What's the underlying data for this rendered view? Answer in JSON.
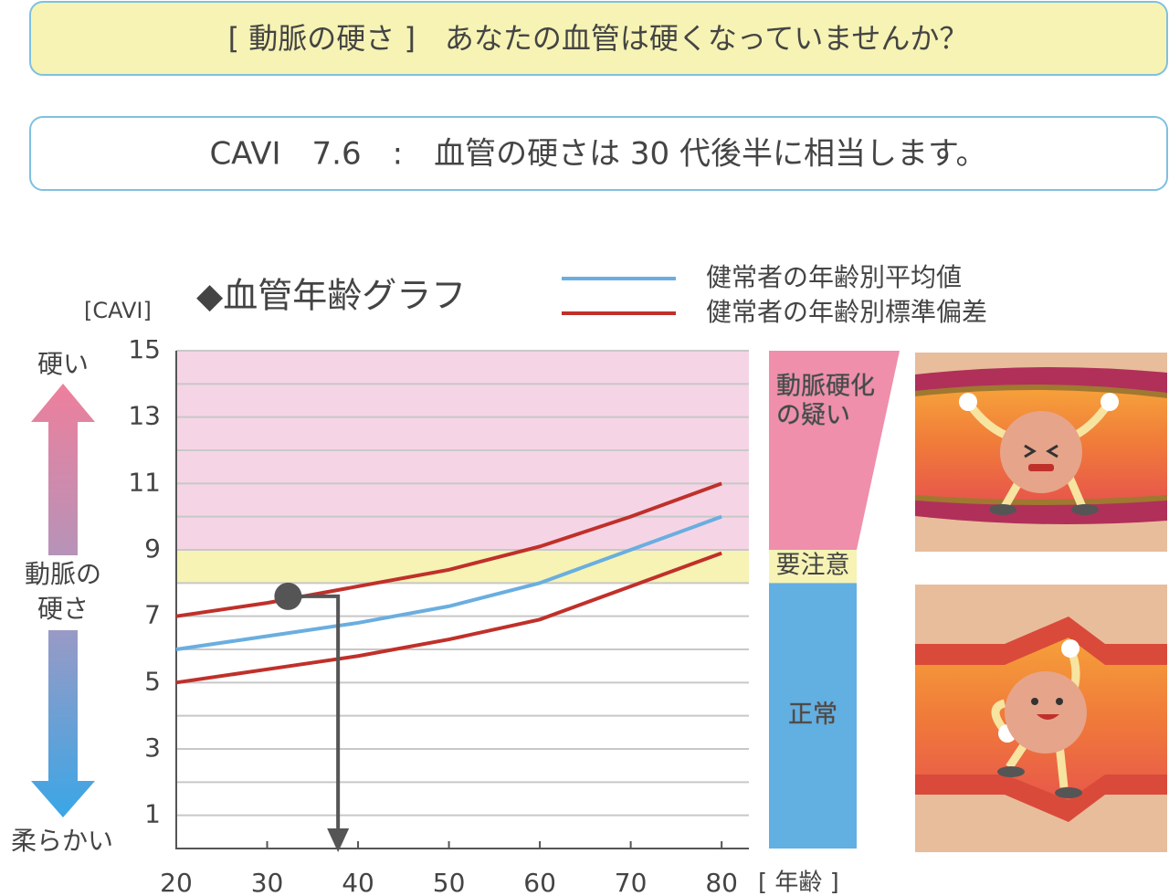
{
  "header": {
    "question": "[ 動脈の硬さ ]　あなたの血管は硬くなっていませんか？",
    "result": "CAVI　7.6　:　血管の硬さは 30 代後半に相当します。"
  },
  "chart_data": {
    "type": "line",
    "title": "◆血管年齢グラフ",
    "y_unit": "[CAVI]",
    "x_unit": "[ 年齢 ]",
    "y_axis_labels": {
      "top": "硬い",
      "middle": [
        "動脈の",
        "硬さ"
      ],
      "bottom": "柔らかい"
    },
    "x": [
      20,
      30,
      40,
      50,
      60,
      70,
      80
    ],
    "series": [
      {
        "name": "健常者の年齢別平均値",
        "color": "#6aaee0",
        "values": [
          6.0,
          6.4,
          6.8,
          7.3,
          8.0,
          9.0,
          10.0
        ]
      },
      {
        "name": "健常者の年齢別標準偏差",
        "color": "#c0302a",
        "upper": [
          7.0,
          7.4,
          7.9,
          8.4,
          9.1,
          10.0,
          11.0
        ],
        "lower": [
          5.0,
          5.4,
          5.8,
          6.3,
          6.9,
          7.9,
          8.9
        ]
      }
    ],
    "zones": [
      {
        "label": [
          "動脈硬化",
          "の疑い"
        ],
        "from": 9,
        "to": 15,
        "color": "#ef8fac",
        "plot_color": "#f5d5e5"
      },
      {
        "label": [
          "要注意"
        ],
        "from": 8,
        "to": 9,
        "color": "#f6f3b4",
        "plot_color": "#f6f3b4"
      },
      {
        "label": [
          "正常"
        ],
        "from": 0,
        "to": 8,
        "color": "#62afe2"
      }
    ],
    "marker": {
      "x": 32.3,
      "y": 7.6,
      "arrow_x": 37.8,
      "color": "#555555"
    },
    "xlim": [
      20,
      83
    ],
    "ylim": [
      0,
      15
    ],
    "xticks": [
      20,
      30,
      40,
      50,
      60,
      70,
      80
    ],
    "yticks": [
      1,
      3,
      5,
      7,
      9,
      11,
      13,
      15
    ],
    "minor_yticks": [
      2,
      4,
      6,
      8,
      10,
      12,
      14
    ],
    "grid": true
  }
}
